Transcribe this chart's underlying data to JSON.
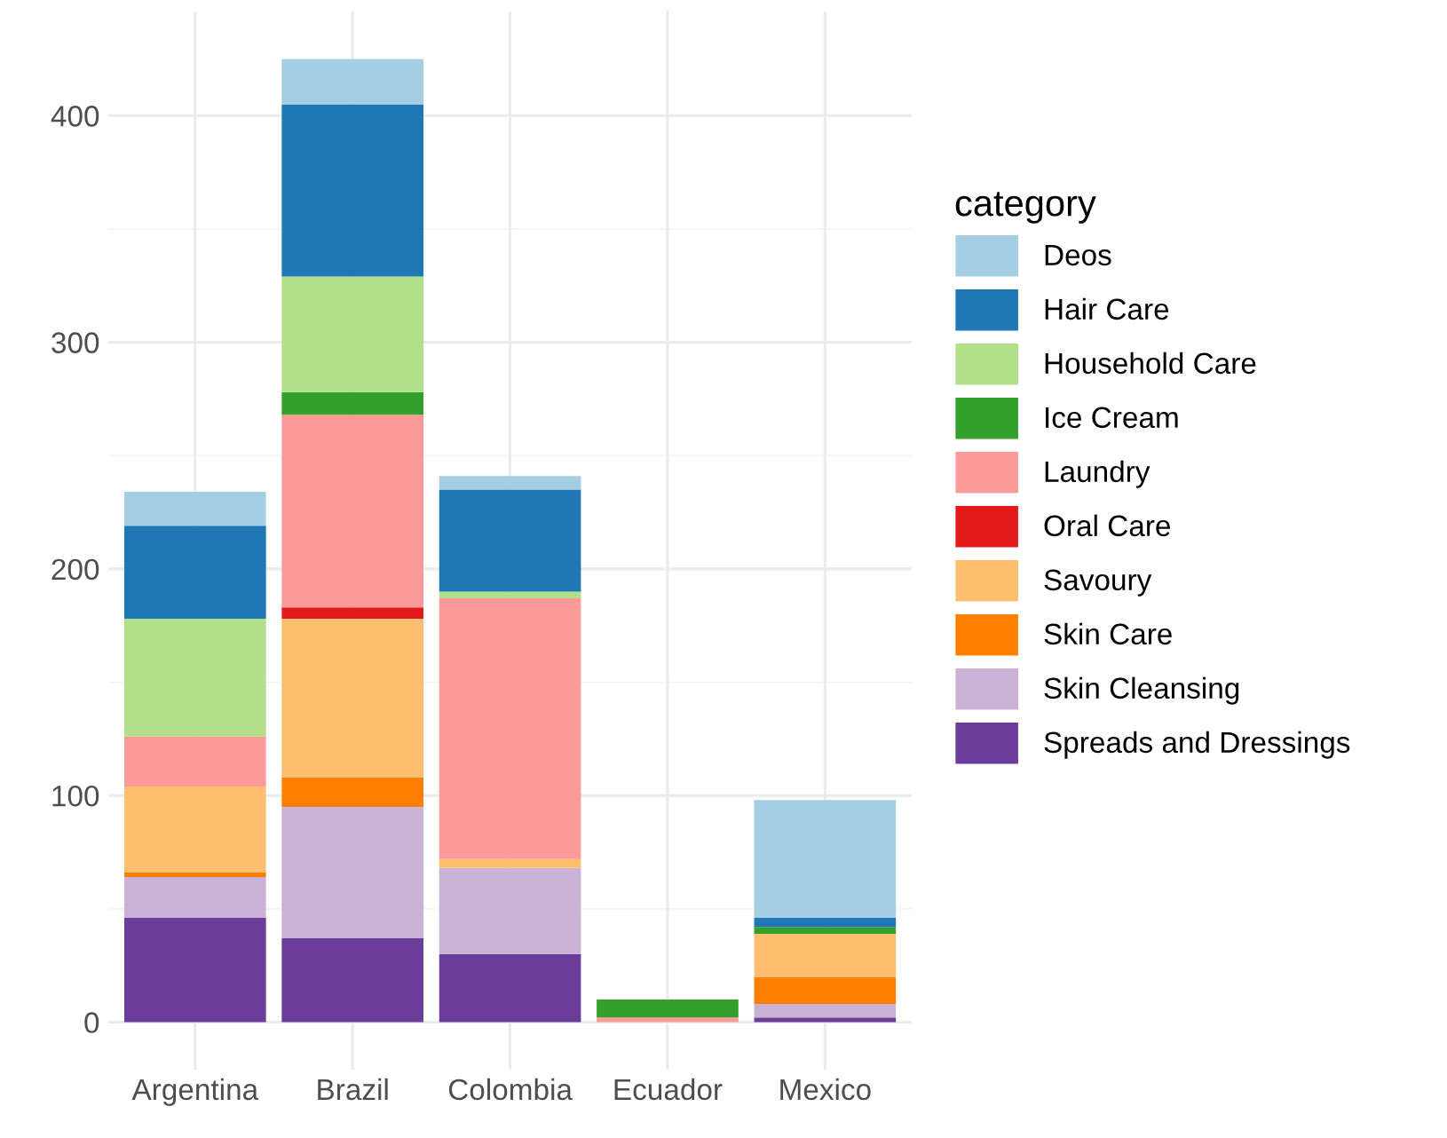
{
  "chart_data": {
    "type": "bar",
    "stacked": true,
    "legend_title": "category",
    "legend": "right",
    "grid": true,
    "categories": [
      "Argentina",
      "Brazil",
      "Colombia",
      "Ecuador",
      "Mexico"
    ],
    "ylim": [
      -21,
      446
    ],
    "yticks": [
      0,
      100,
      200,
      300,
      400
    ],
    "series": [
      {
        "name": "Spreads and Dressings",
        "color": "#6a3d9a",
        "values": [
          46,
          37,
          30,
          0,
          2
        ]
      },
      {
        "name": "Skin Cleansing",
        "color": "#cab2d6",
        "values": [
          18,
          58,
          38,
          0,
          6
        ]
      },
      {
        "name": "Skin Care",
        "color": "#ff7f00",
        "values": [
          2,
          13,
          0,
          0,
          12
        ]
      },
      {
        "name": "Savoury",
        "color": "#fdbf6f",
        "values": [
          38,
          70,
          4,
          0,
          19
        ]
      },
      {
        "name": "Oral Care",
        "color": "#e31a1c",
        "values": [
          0,
          5,
          0,
          0,
          0
        ]
      },
      {
        "name": "Laundry",
        "color": "#fb9a99",
        "values": [
          22,
          85,
          115,
          2,
          0
        ]
      },
      {
        "name": "Ice Cream",
        "color": "#33a02c",
        "values": [
          0,
          10,
          0,
          8,
          3
        ]
      },
      {
        "name": "Household Care",
        "color": "#b2df8a",
        "values": [
          52,
          51,
          3,
          0,
          0
        ]
      },
      {
        "name": "Hair Care",
        "color": "#1f78b4",
        "values": [
          41,
          76,
          45,
          0,
          4
        ]
      },
      {
        "name": "Deos",
        "color": "#a6cee3",
        "values": [
          15,
          20,
          6,
          0,
          52
        ]
      }
    ]
  }
}
